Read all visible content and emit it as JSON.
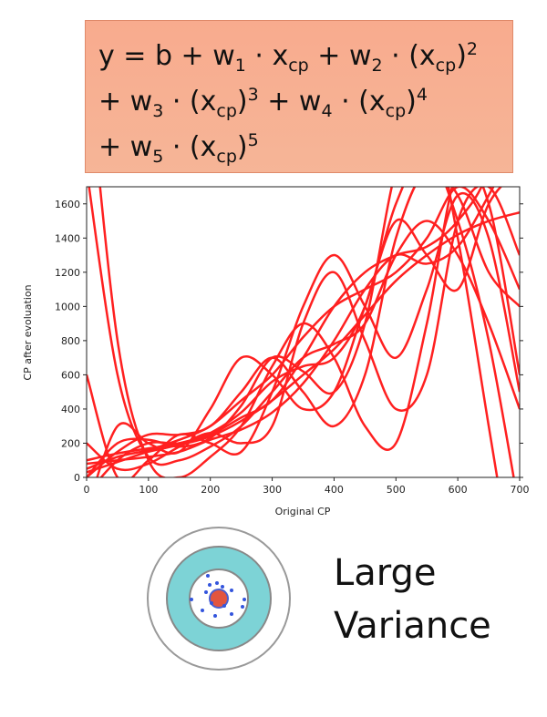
{
  "formula": {
    "lines": [
      [
        {
          "text": "y = b + w"
        },
        {
          "text": "1",
          "style": "sub"
        },
        {
          "text": " · x"
        },
        {
          "text": "cp",
          "style": "sub"
        },
        {
          "text": " + w"
        },
        {
          "text": "2",
          "style": "sub"
        },
        {
          "text": " · (x"
        },
        {
          "text": "cp",
          "style": "sub"
        },
        {
          "text": ")"
        },
        {
          "text": "2",
          "style": "sup"
        }
      ],
      [
        {
          "text": "+ w"
        },
        {
          "text": "3",
          "style": "sub"
        },
        {
          "text": " · (x"
        },
        {
          "text": "cp",
          "style": "sub"
        },
        {
          "text": ")"
        },
        {
          "text": "3",
          "style": "sup"
        },
        {
          "text": " + w"
        },
        {
          "text": "4",
          "style": "sub"
        },
        {
          "text": " · (x"
        },
        {
          "text": "cp",
          "style": "sub"
        },
        {
          "text": ")"
        },
        {
          "text": "4",
          "style": "sup"
        }
      ],
      [
        {
          "text": "+ w"
        },
        {
          "text": "5",
          "style": "sub"
        },
        {
          "text": " · (x"
        },
        {
          "text": "cp",
          "style": "sub"
        },
        {
          "text": ")"
        },
        {
          "text": "5",
          "style": "sup"
        }
      ]
    ]
  },
  "chart_data": {
    "type": "line",
    "xlabel": "Original CP",
    "ylabel": "CP after evoluation",
    "xlim": [
      0,
      700
    ],
    "ylim": [
      0,
      1700
    ],
    "xticks": [
      0,
      100,
      200,
      300,
      400,
      500,
      600,
      700
    ],
    "yticks": [
      0,
      200,
      400,
      600,
      800,
      1000,
      1200,
      1400,
      1600
    ],
    "color": "#ff2020",
    "x": [
      0,
      50,
      100,
      150,
      200,
      250,
      300,
      350,
      400,
      450,
      500,
      550,
      600,
      650,
      700
    ],
    "series": [
      {
        "values": [
          30,
          90,
          150,
          190,
          240,
          330,
          450,
          600,
          750,
          950,
          1150,
          1300,
          1420,
          1500,
          1550
        ]
      },
      {
        "values": [
          1800,
          600,
          120,
          100,
          180,
          300,
          500,
          700,
          780,
          900,
          1300,
          1500,
          1300,
          900,
          400
        ]
      },
      {
        "values": [
          100,
          140,
          170,
          200,
          260,
          380,
          560,
          650,
          700,
          1000,
          1600,
          1900,
          1500,
          800,
          -200
        ]
      },
      {
        "values": [
          0,
          200,
          220,
          180,
          230,
          420,
          700,
          620,
          500,
          900,
          1800,
          2200,
          1400,
          300,
          -800
        ]
      },
      {
        "values": [
          -100,
          100,
          200,
          200,
          250,
          350,
          450,
          700,
          1000,
          1200,
          1300,
          1350,
          1500,
          1800,
          2500
        ]
      },
      {
        "values": [
          50,
          120,
          160,
          220,
          300,
          450,
          600,
          820,
          1000,
          1100,
          1200,
          1400,
          1700,
          1500,
          1100
        ]
      },
      {
        "values": [
          2500,
          800,
          100,
          0,
          120,
          300,
          650,
          900,
          700,
          300,
          200,
          900,
          1800,
          1600,
          600
        ]
      },
      {
        "values": [
          200,
          50,
          80,
          180,
          260,
          200,
          300,
          900,
          1200,
          800,
          400,
          600,
          1500,
          1700,
          1300
        ]
      },
      {
        "values": [
          0,
          150,
          250,
          250,
          300,
          500,
          700,
          500,
          300,
          600,
          1400,
          1800,
          1650,
          1200,
          1000
        ]
      },
      {
        "values": [
          80,
          100,
          120,
          150,
          220,
          280,
          380,
          550,
          800,
          1100,
          1300,
          1250,
          1350,
          1650,
          2000
        ]
      },
      {
        "values": [
          -200,
          300,
          200,
          150,
          400,
          700,
          600,
          400,
          500,
          1000,
          1500,
          1300,
          1100,
          1600,
          1800
        ]
      },
      {
        "values": [
          600,
          0,
          100,
          250,
          200,
          150,
          500,
          1000,
          1300,
          1000,
          700,
          1100,
          1650,
          1400,
          500
        ]
      }
    ]
  },
  "caption": {
    "lines": [
      "Large",
      "Variance"
    ]
  }
}
